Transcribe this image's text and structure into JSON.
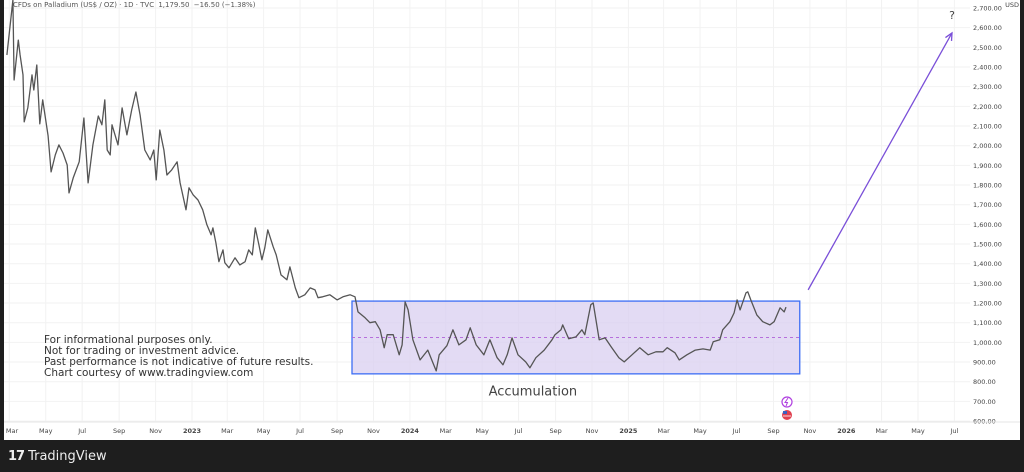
{
  "header": {
    "symbol": "CFDs on Palladium (US$ / OZ) · 1D · TVC",
    "last": "1,179.50",
    "change": "−16.50 (−1.38%)"
  },
  "disclaimer": [
    "For informational purposes only.",
    "Not for trading or investment advice.",
    "Past performance is not indicative of future results.",
    "Chart courtesy of www.tradingview.com"
  ],
  "footer": {
    "brand": "TradingView",
    "logo_mark": "17"
  },
  "colors": {
    "line": "#555555",
    "box_fill": "#d9cff0",
    "box_border": "#3d6ef5",
    "midline": "#b060d8",
    "arrow": "#7a4fd8"
  },
  "icons": [
    "lightning-event-icon",
    "us-flag-event-icon"
  ],
  "chart_data": {
    "type": "line",
    "title": "CFDs on Palladium (US$ / OZ) · 1D · TVC",
    "ylabel": "USD",
    "ylim": [
      600,
      2700
    ],
    "grid": true,
    "y_ticks": [
      "2,700.00",
      "2,600.00",
      "2,500.00",
      "2,400.00",
      "2,300.00",
      "2,200.00",
      "2,100.00",
      "2,000.00",
      "1,900.00",
      "1,800.00",
      "1,700.00",
      "1,600.00",
      "1,500.00",
      "1,400.00",
      "1,300.00",
      "1,200.00",
      "1,100.00",
      "1,000.00",
      "900.00",
      "800.00",
      "700.00",
      "600.00"
    ],
    "x_ticks": [
      {
        "label": "Mar",
        "date": "2022-03-01"
      },
      {
        "label": "May",
        "date": "2022-05-01"
      },
      {
        "label": "Jul",
        "date": "2022-07-01"
      },
      {
        "label": "Sep",
        "date": "2022-09-01"
      },
      {
        "label": "Nov",
        "date": "2022-11-01"
      },
      {
        "label": "2023",
        "date": "2023-01-01"
      },
      {
        "label": "Mar",
        "date": "2023-03-01"
      },
      {
        "label": "May",
        "date": "2023-05-01"
      },
      {
        "label": "Jul",
        "date": "2023-07-01"
      },
      {
        "label": "Sep",
        "date": "2023-09-01"
      },
      {
        "label": "Nov",
        "date": "2023-11-01"
      },
      {
        "label": "2024",
        "date": "2024-01-01"
      },
      {
        "label": "Mar",
        "date": "2024-03-01"
      },
      {
        "label": "May",
        "date": "2024-05-01"
      },
      {
        "label": "Jul",
        "date": "2024-07-01"
      },
      {
        "label": "Sep",
        "date": "2024-09-01"
      },
      {
        "label": "Nov",
        "date": "2024-11-01"
      },
      {
        "label": "2025",
        "date": "2025-01-01"
      },
      {
        "label": "Mar",
        "date": "2025-03-01"
      },
      {
        "label": "May",
        "date": "2025-05-01"
      },
      {
        "label": "Jul",
        "date": "2025-07-01"
      },
      {
        "label": "Sep",
        "date": "2025-09-01"
      },
      {
        "label": "Nov",
        "date": "2025-11-01"
      },
      {
        "label": "2026",
        "date": "2026-01-01"
      },
      {
        "label": "Mar",
        "date": "2026-03-01"
      },
      {
        "label": "May",
        "date": "2026-05-01"
      },
      {
        "label": "Jul",
        "date": "2026-07-01"
      }
    ],
    "series": [
      {
        "points": [
          [
            "2022-02-25",
            2461
          ],
          [
            "2022-03-07",
            2780
          ],
          [
            "2022-03-09",
            2334
          ],
          [
            "2022-03-16",
            2537
          ],
          [
            "2022-03-19",
            2461
          ],
          [
            "2022-03-24",
            2360
          ],
          [
            "2022-03-26",
            2121
          ],
          [
            "2022-04-01",
            2192
          ],
          [
            "2022-04-08",
            2360
          ],
          [
            "2022-04-11",
            2283
          ],
          [
            "2022-04-16",
            2410
          ],
          [
            "2022-04-21",
            2111
          ],
          [
            "2022-04-26",
            2233
          ],
          [
            "2022-05-05",
            2050
          ],
          [
            "2022-05-10",
            1867
          ],
          [
            "2022-05-17",
            1953
          ],
          [
            "2022-05-23",
            2004
          ],
          [
            "2022-05-30",
            1963
          ],
          [
            "2022-06-06",
            1902
          ],
          [
            "2022-06-09",
            1760
          ],
          [
            "2022-06-16",
            1836
          ],
          [
            "2022-06-26",
            1918
          ],
          [
            "2022-07-04",
            2141
          ],
          [
            "2022-07-11",
            1811
          ],
          [
            "2022-07-19",
            2004
          ],
          [
            "2022-07-28",
            2151
          ],
          [
            "2022-08-03",
            2106
          ],
          [
            "2022-08-08",
            2233
          ],
          [
            "2022-08-12",
            1978
          ],
          [
            "2022-08-17",
            1953
          ],
          [
            "2022-08-20",
            2106
          ],
          [
            "2022-08-30",
            2004
          ],
          [
            "2022-09-06",
            2192
          ],
          [
            "2022-09-14",
            2055
          ],
          [
            "2022-09-22",
            2182
          ],
          [
            "2022-09-29",
            2273
          ],
          [
            "2022-10-06",
            2156
          ],
          [
            "2022-10-14",
            1978
          ],
          [
            "2022-10-23",
            1928
          ],
          [
            "2022-10-29",
            1978
          ],
          [
            "2022-11-02",
            1826
          ],
          [
            "2022-11-08",
            2080
          ],
          [
            "2022-11-15",
            1978
          ],
          [
            "2022-11-20",
            1851
          ],
          [
            "2022-11-28",
            1877
          ],
          [
            "2022-12-07",
            1918
          ],
          [
            "2022-12-12",
            1811
          ],
          [
            "2022-12-22",
            1674
          ],
          [
            "2022-12-27",
            1786
          ],
          [
            "2023-01-03",
            1750
          ],
          [
            "2023-01-11",
            1724
          ],
          [
            "2023-01-19",
            1674
          ],
          [
            "2023-01-26",
            1598
          ],
          [
            "2023-02-02",
            1547
          ],
          [
            "2023-02-05",
            1582
          ],
          [
            "2023-02-10",
            1506
          ],
          [
            "2023-02-15",
            1410
          ],
          [
            "2023-02-22",
            1470
          ],
          [
            "2023-02-25",
            1405
          ],
          [
            "2023-03-04",
            1379
          ],
          [
            "2023-03-14",
            1430
          ],
          [
            "2023-03-22",
            1394
          ],
          [
            "2023-03-31",
            1410
          ],
          [
            "2023-04-06",
            1470
          ],
          [
            "2023-04-12",
            1445
          ],
          [
            "2023-04-17",
            1582
          ],
          [
            "2023-04-23",
            1496
          ],
          [
            "2023-04-28",
            1420
          ],
          [
            "2023-05-03",
            1481
          ],
          [
            "2023-05-08",
            1572
          ],
          [
            "2023-05-17",
            1486
          ],
          [
            "2023-05-22",
            1445
          ],
          [
            "2023-05-30",
            1343
          ],
          [
            "2023-06-09",
            1318
          ],
          [
            "2023-06-14",
            1384
          ],
          [
            "2023-06-23",
            1277
          ],
          [
            "2023-06-29",
            1227
          ],
          [
            "2023-07-09",
            1242
          ],
          [
            "2023-07-18",
            1277
          ],
          [
            "2023-07-26",
            1267
          ],
          [
            "2023-07-31",
            1227
          ],
          [
            "2023-08-08",
            1232
          ],
          [
            "2023-08-20",
            1242
          ],
          [
            "2023-09-01",
            1216
          ],
          [
            "2023-09-11",
            1232
          ],
          [
            "2023-09-23",
            1242
          ],
          [
            "2023-10-01",
            1232
          ],
          [
            "2023-10-06",
            1155
          ],
          [
            "2023-10-18",
            1125
          ],
          [
            "2023-10-26",
            1100
          ],
          [
            "2023-11-04",
            1105
          ],
          [
            "2023-11-12",
            1064
          ],
          [
            "2023-11-19",
            973
          ],
          [
            "2023-11-24",
            1039
          ],
          [
            "2023-12-04",
            1039
          ],
          [
            "2023-12-14",
            937
          ],
          [
            "2023-12-19",
            987
          ],
          [
            "2023-12-24",
            1206
          ],
          [
            "2023-12-29",
            1165
          ],
          [
            "2024-01-06",
            1013
          ],
          [
            "2024-01-18",
            911
          ],
          [
            "2024-01-31",
            961
          ],
          [
            "2024-02-10",
            885
          ],
          [
            "2024-02-14",
            855
          ],
          [
            "2024-02-19",
            937
          ],
          [
            "2024-03-03",
            983
          ],
          [
            "2024-03-13",
            1064
          ],
          [
            "2024-03-23",
            987
          ],
          [
            "2024-04-04",
            1013
          ],
          [
            "2024-04-11",
            1074
          ],
          [
            "2024-04-21",
            987
          ],
          [
            "2024-05-04",
            937
          ],
          [
            "2024-05-14",
            1013
          ],
          [
            "2024-05-26",
            922
          ],
          [
            "2024-06-05",
            886
          ],
          [
            "2024-06-12",
            937
          ],
          [
            "2024-06-20",
            1023
          ],
          [
            "2024-06-30",
            937
          ],
          [
            "2024-07-13",
            901
          ],
          [
            "2024-07-20",
            871
          ],
          [
            "2024-07-30",
            922
          ],
          [
            "2024-08-13",
            961
          ],
          [
            "2024-08-26",
            1013
          ],
          [
            "2024-08-31",
            1039
          ],
          [
            "2024-09-10",
            1064
          ],
          [
            "2024-09-13",
            1089
          ],
          [
            "2024-09-23",
            1018
          ],
          [
            "2024-10-05",
            1028
          ],
          [
            "2024-10-15",
            1064
          ],
          [
            "2024-10-20",
            1039
          ],
          [
            "2024-10-30",
            1191
          ],
          [
            "2024-11-03",
            1201
          ],
          [
            "2024-11-13",
            1013
          ],
          [
            "2024-11-23",
            1023
          ],
          [
            "2024-12-03",
            978
          ],
          [
            "2024-12-16",
            922
          ],
          [
            "2024-12-25",
            901
          ],
          [
            "2025-01-07",
            937
          ],
          [
            "2025-01-20",
            973
          ],
          [
            "2025-02-03",
            937
          ],
          [
            "2025-02-16",
            952
          ],
          [
            "2025-02-28",
            952
          ],
          [
            "2025-03-07",
            973
          ],
          [
            "2025-03-20",
            947
          ],
          [
            "2025-03-27",
            911
          ],
          [
            "2025-04-09",
            937
          ],
          [
            "2025-04-23",
            961
          ],
          [
            "2025-05-06",
            967
          ],
          [
            "2025-05-18",
            961
          ],
          [
            "2025-05-23",
            1003
          ],
          [
            "2025-06-03",
            1013
          ],
          [
            "2025-06-08",
            1064
          ],
          [
            "2025-06-20",
            1105
          ],
          [
            "2025-06-27",
            1150
          ],
          [
            "2025-07-02",
            1216
          ],
          [
            "2025-07-07",
            1165
          ],
          [
            "2025-07-17",
            1252
          ],
          [
            "2025-07-20",
            1257
          ],
          [
            "2025-07-25",
            1216
          ],
          [
            "2025-08-04",
            1140
          ],
          [
            "2025-08-14",
            1105
          ],
          [
            "2025-08-26",
            1089
          ],
          [
            "2025-09-02",
            1105
          ],
          [
            "2025-09-12",
            1176
          ],
          [
            "2025-09-19",
            1155
          ],
          [
            "2025-09-22",
            1179.5
          ]
        ]
      }
    ],
    "annotations": {
      "range_box": {
        "start": "2023-09-26",
        "end": "2025-10-15",
        "top": 1210,
        "bottom": 840,
        "mid": 1025,
        "label": "Accumulation",
        "label_date": "2024-07-25",
        "label_price": 750
      },
      "arrow": {
        "from": [
          "2025-10-29",
          1267
        ],
        "to": [
          "2026-06-27",
          2573
        ],
        "label": "?"
      }
    }
  }
}
